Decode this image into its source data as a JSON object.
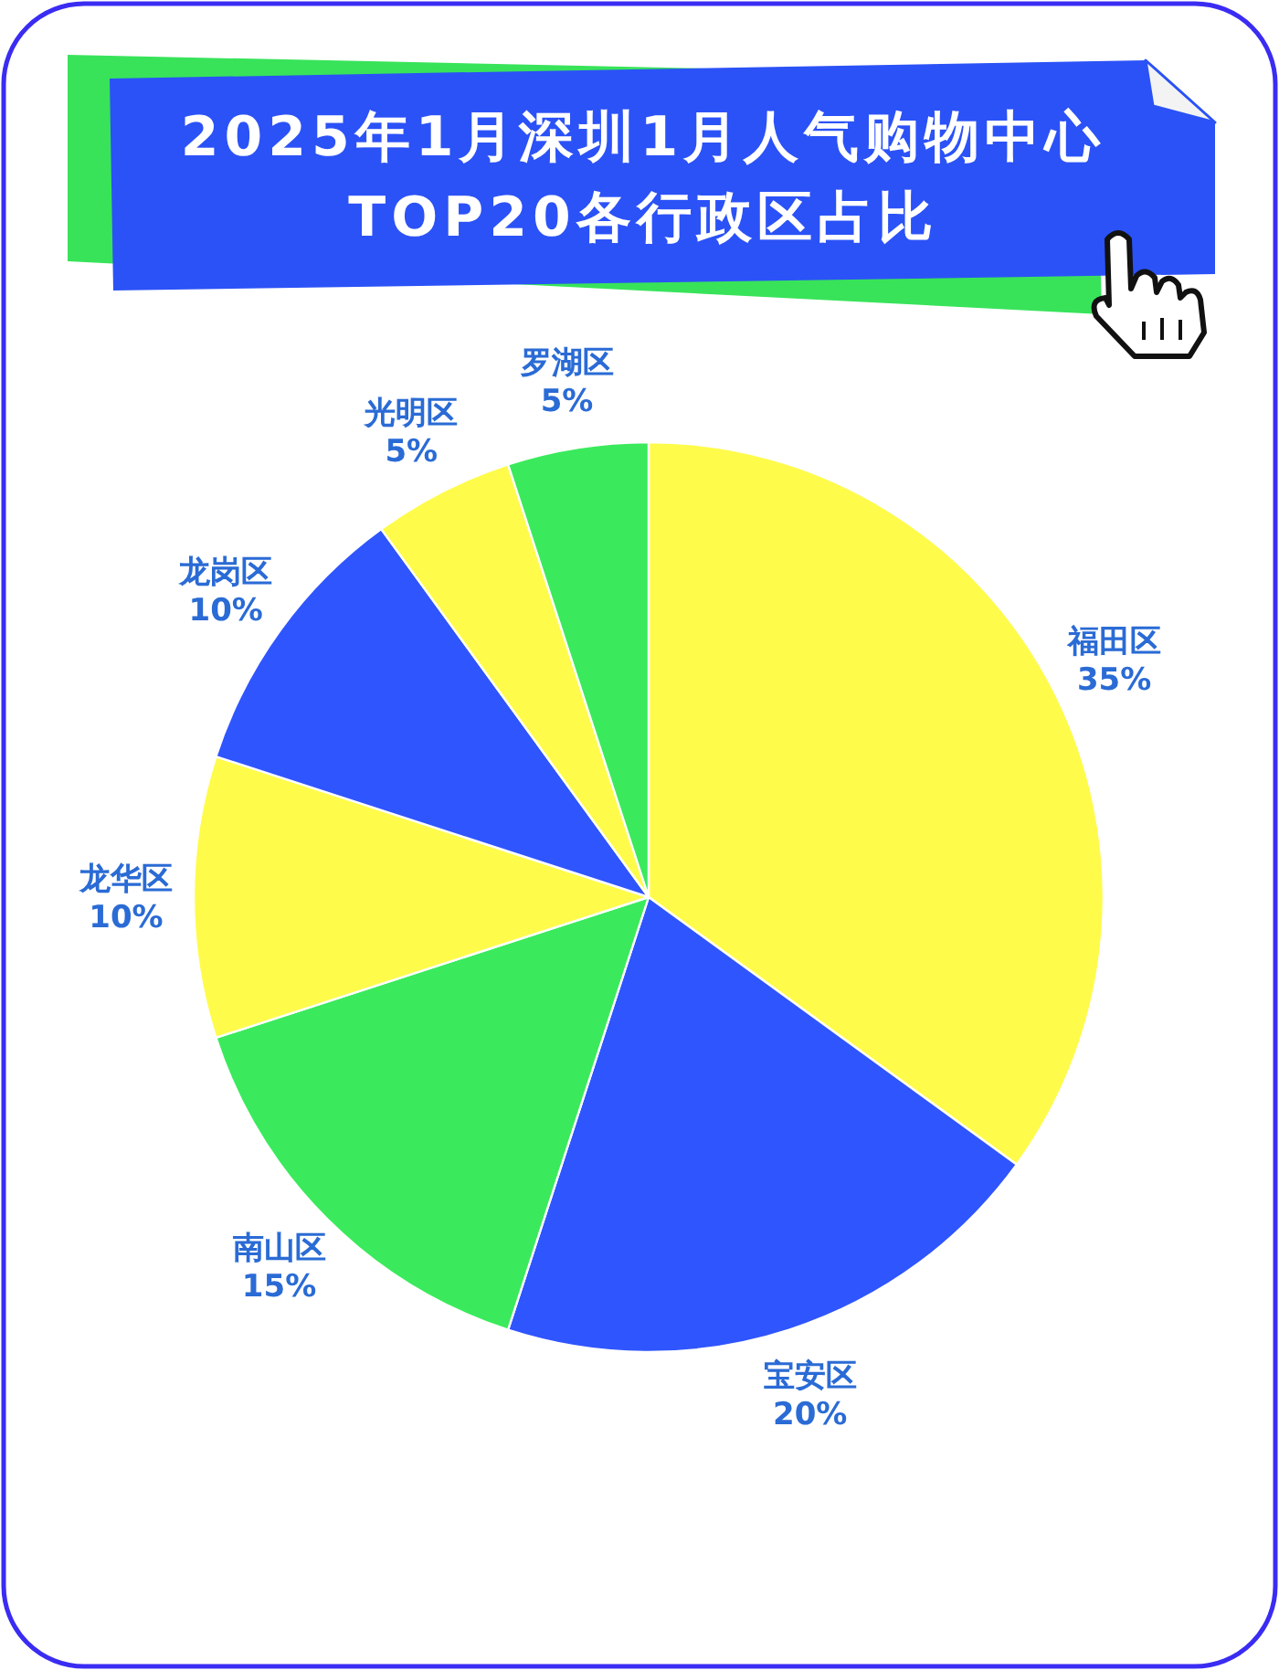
{
  "chart_data": {
    "type": "pie",
    "title": "2025年1月深圳1月人气购物中心TOP20各行政区占比",
    "categories": [
      "福田区",
      "宝安区",
      "南山区",
      "龙华区",
      "龙岗区",
      "光明区",
      "罗湖区"
    ],
    "values": [
      35,
      20,
      15,
      10,
      10,
      5,
      5
    ],
    "colors": [
      "#fffb4b",
      "#2f55fe",
      "#3aea5c",
      "#fffb4b",
      "#2f55fe",
      "#fffb4b",
      "#3aea5c"
    ],
    "value_labels": [
      "35%",
      "20%",
      "15%",
      "10%",
      "10%",
      "5%",
      "5%"
    ]
  }
}
